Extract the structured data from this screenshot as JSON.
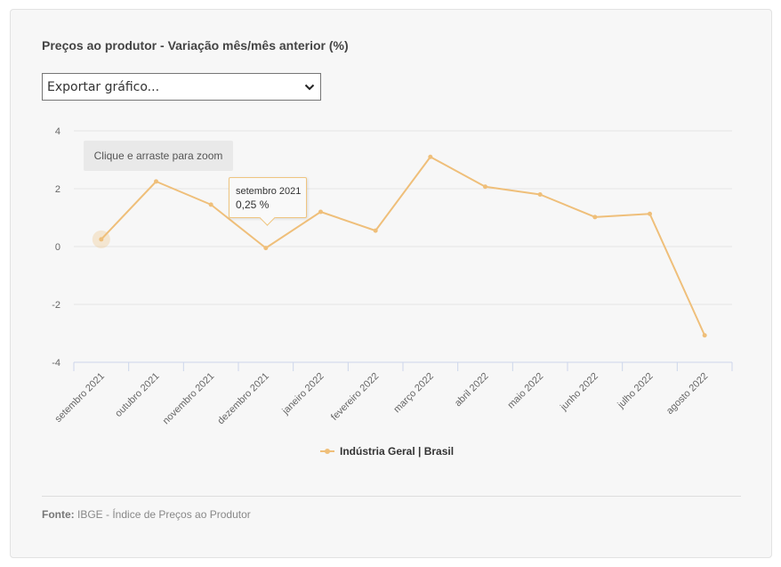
{
  "title": "Preços ao produtor - Variação mês/mês anterior (%)",
  "export_select": {
    "selected": "Exportar gráfico..."
  },
  "zoom_hint": "Clique e arraste para zoom",
  "tooltip": {
    "label": "setembro 2021",
    "value": "0,25 %"
  },
  "legend": {
    "series_name": "Indústria Geral | Brasil"
  },
  "source": {
    "label": "Fonte:",
    "text": "IBGE - Índice de Preços ao Produtor"
  },
  "colors": {
    "series": "#efbf7a",
    "grid": "#e6e6e6",
    "axis": "#ccd6eb",
    "text": "#666666"
  },
  "chart_data": {
    "type": "line",
    "categories": [
      "setembro 2021",
      "outubro 2021",
      "novembro 2021",
      "dezembro 2021",
      "janeiro 2022",
      "fevereiro 2022",
      "março 2022",
      "abril 2022",
      "maio 2022",
      "junho 2022",
      "julho 2022",
      "agosto 2022"
    ],
    "series": [
      {
        "name": "Indústria Geral | Brasil",
        "values": [
          0.25,
          2.25,
          1.45,
          -0.05,
          1.2,
          0.55,
          3.1,
          2.07,
          1.8,
          1.02,
          1.13,
          -3.07
        ]
      }
    ],
    "ylim": [
      -4,
      4
    ],
    "yticks": [
      -4,
      -2,
      0,
      2,
      4
    ],
    "grid": true,
    "legend_position": "bottom-center",
    "highlighted_index": 0
  }
}
